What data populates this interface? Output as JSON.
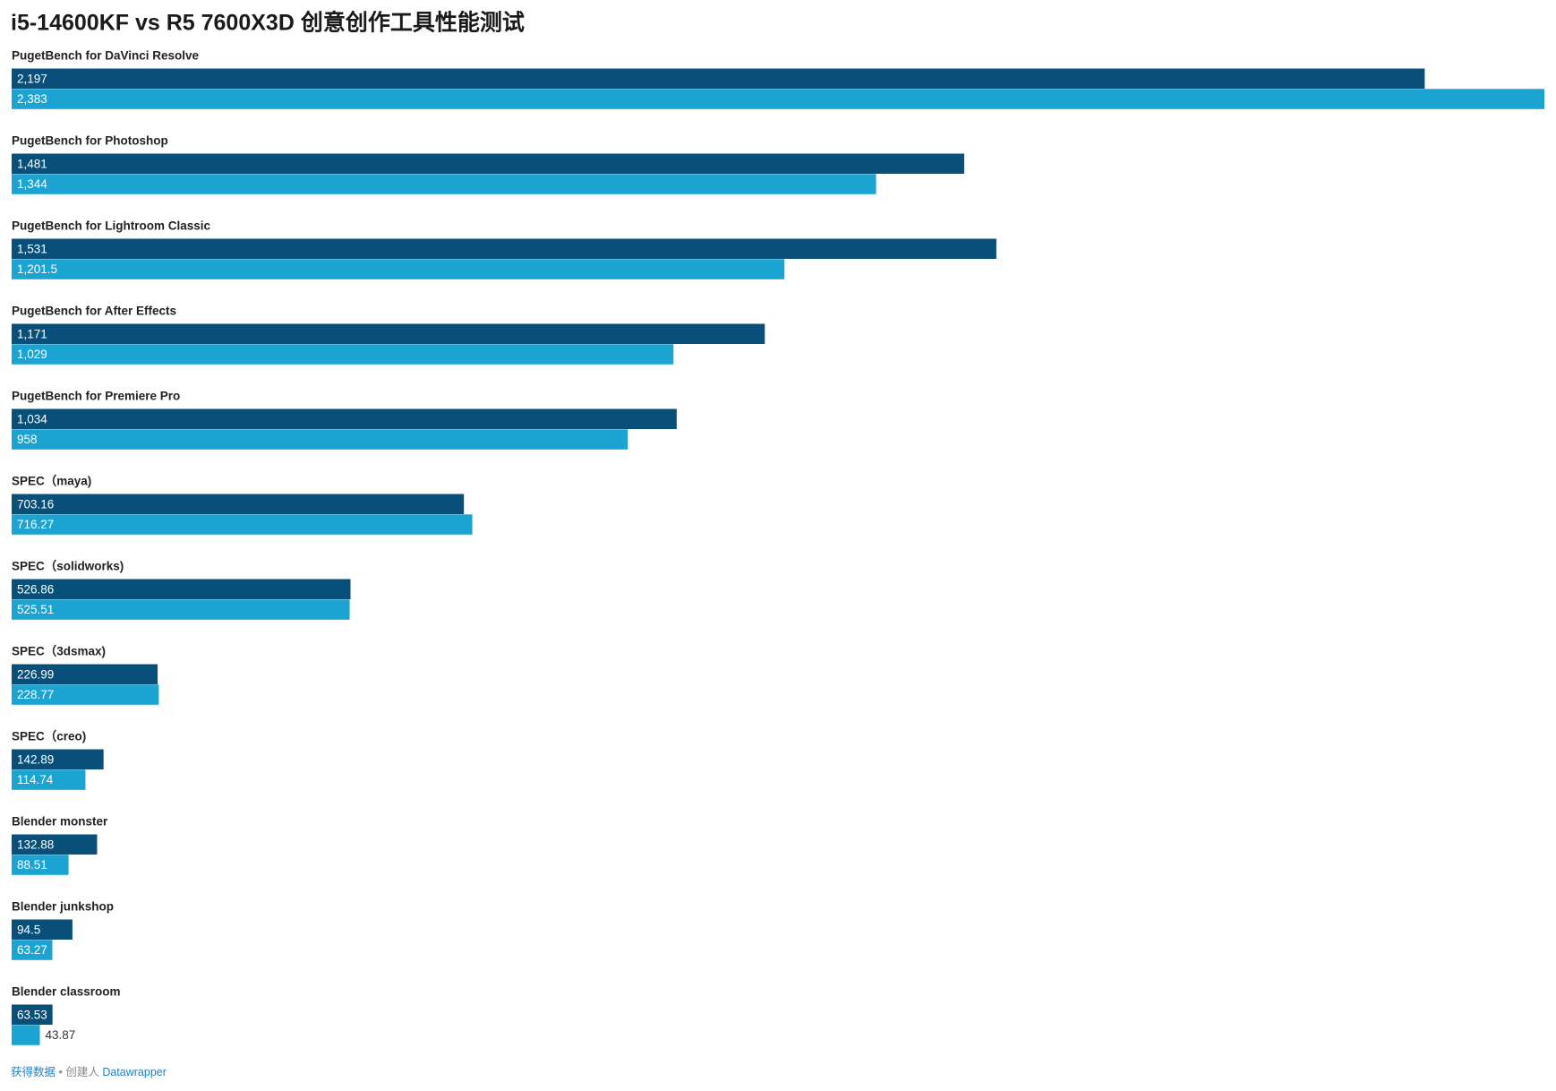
{
  "chart_data": {
    "type": "grouped-bar-horizontal",
    "title": "i5-14600KF vs R5 7600X3D 创意创作工具性能测试",
    "categories": [
      "PugetBench for DaVinci Resolve",
      "PugetBench for Photoshop",
      "PugetBench for Lightroom Classic",
      "PugetBench for After Effects",
      "PugetBench for Premiere Pro",
      "SPEC（maya)",
      "SPEC（solidworks)",
      "SPEC（3dsmax)",
      "SPEC（creo)",
      "Blender monster",
      "Blender junkshop",
      "Blender classroom"
    ],
    "series": [
      {
        "color": "#08507a",
        "values": [
          2197,
          1481,
          1531,
          1171,
          1034,
          703.16,
          526.86,
          226.99,
          142.89,
          132.88,
          94.5,
          63.53
        ],
        "value_labels": [
          "2,197",
          "1,481",
          "1,531",
          "1,171",
          "1,034",
          "703.16",
          "526.86",
          "226.99",
          "142.89",
          "132.88",
          "94.5",
          "63.53"
        ]
      },
      {
        "color": "#1ba3d1",
        "values": [
          2383,
          1344,
          1201.5,
          1029,
          958,
          716.27,
          525.51,
          228.77,
          114.74,
          88.51,
          63.27,
          43.87
        ],
        "value_labels": [
          "2,383",
          "1,344",
          "1,201.5",
          "1,029",
          "958",
          "716.27",
          "525.51",
          "228.77",
          "114.74",
          "88.51",
          "63.27",
          "43.87"
        ]
      }
    ]
  },
  "footer": {
    "source": "获得数据",
    "credit": "• 创建人",
    "tool": "Datawrapper"
  }
}
